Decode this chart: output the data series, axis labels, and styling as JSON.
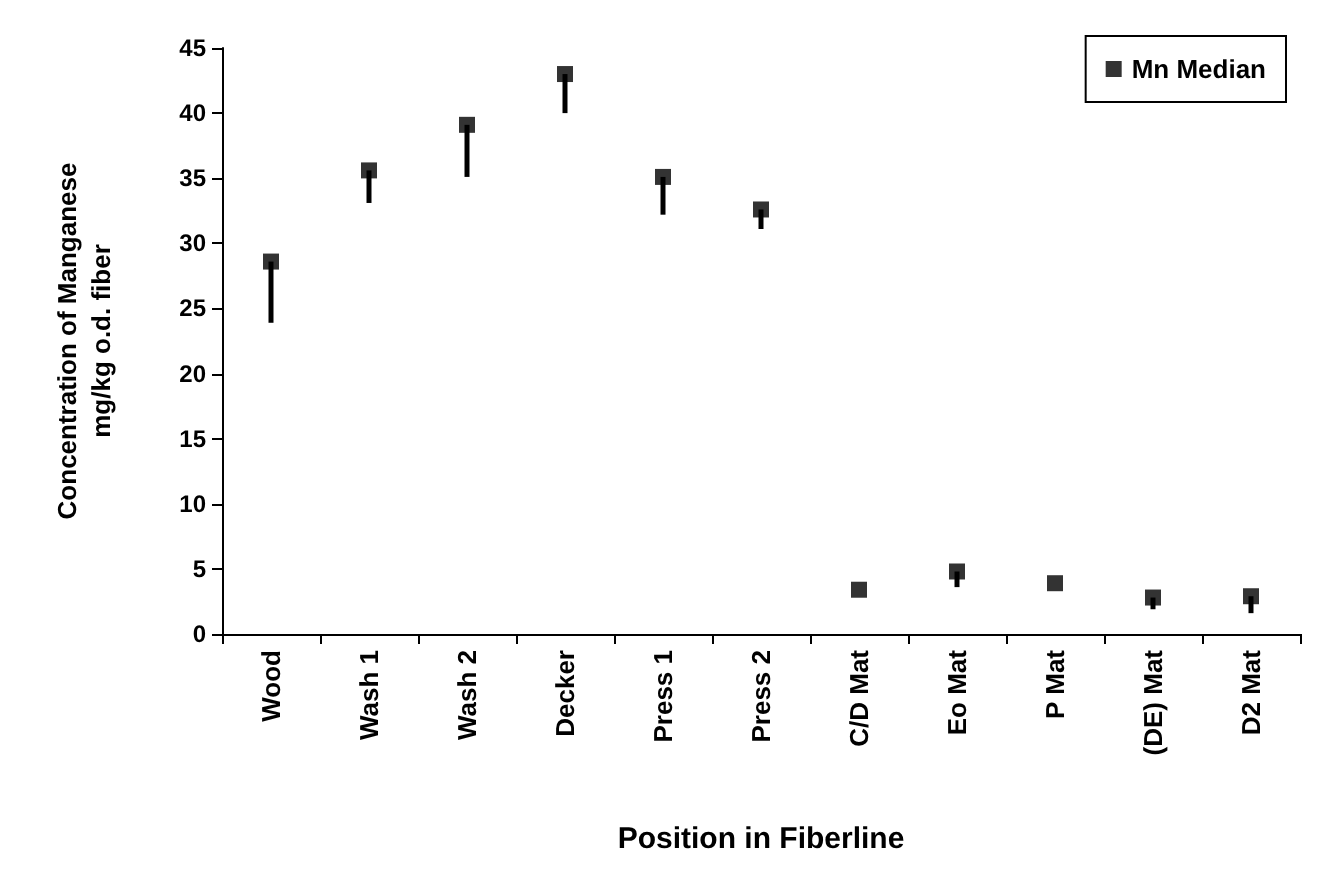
{
  "chart_data": {
    "type": "scatter",
    "xlabel": "Position in Fiberline",
    "ylabel": "Concentration of Manganese\nmg/kg o.d. fiber",
    "categories": [
      "Wood",
      "Wash 1",
      "Wash 2",
      "Decker",
      "Press 1",
      "Press 2",
      "C/D Mat",
      "Eo Mat",
      "P Mat",
      "(DE) Mat",
      "D2 Mat"
    ],
    "series": [
      {
        "name": "Mn Median",
        "color": "#000000",
        "values": [
          28.6,
          35.6,
          39.1,
          43.0,
          35.1,
          32.6,
          3.4,
          4.8,
          3.9,
          2.8,
          2.9
        ],
        "errors": [
          [
            23.9,
            28.6
          ],
          [
            33.1,
            35.6
          ],
          [
            35.1,
            39.1
          ],
          [
            40.0,
            43.0
          ],
          [
            32.2,
            35.1
          ],
          [
            31.1,
            32.6
          ],
          null,
          [
            3.6,
            4.8
          ],
          null,
          [
            1.9,
            2.8
          ],
          [
            1.6,
            2.9
          ]
        ]
      }
    ],
    "ylim": [
      0,
      45
    ],
    "yticks": [
      0,
      5,
      10,
      15,
      20,
      25,
      30,
      35,
      40,
      45
    ],
    "grid": false,
    "legend": "top right",
    "marker": "square"
  }
}
